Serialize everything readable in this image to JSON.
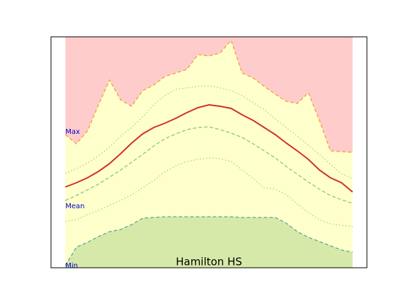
{
  "chart_data": {
    "type": "band-line",
    "title": "Hamilton HS",
    "x": [
      0,
      1,
      2,
      3,
      4,
      5,
      6,
      7,
      8,
      9,
      10,
      11,
      12,
      13,
      14,
      15,
      16,
      17,
      18,
      19,
      20,
      21,
      22,
      23,
      24,
      25,
      26
    ],
    "xlim": [
      -1.3,
      27.3
    ],
    "ylim": [
      0,
      326
    ],
    "band_labels": [
      "Max",
      "Mean",
      "Min"
    ],
    "fills": {
      "above": "#ffcccc",
      "between": "#ffffcc",
      "below": "#d6e9a8"
    },
    "series": [
      {
        "color": "#f0a040",
        "style": "dashed",
        "values": [
          188,
          175,
          193,
          230,
          265,
          237,
          228,
          250,
          258,
          270,
          275,
          280,
          301,
          299,
          303,
          321,
          275,
          268,
          256,
          245,
          235,
          232,
          247,
          208,
          165,
          164,
          163
        ]
      },
      {
        "color": "#a8d088",
        "style": "dotted",
        "values": [
          133,
          140,
          148,
          158,
          170,
          186,
          198,
          213,
          230,
          243,
          252,
          254,
          256,
          257,
          254,
          250,
          243,
          233,
          223,
          210,
          198,
          186,
          173,
          160,
          146,
          133,
          126
        ]
      },
      {
        "color": "#d03030",
        "style": "solid",
        "values": [
          114,
          120,
          127,
          136,
          147,
          161,
          176,
          189,
          198,
          204,
          211,
          219,
          226,
          230,
          228,
          225,
          216,
          208,
          198,
          188,
          176,
          165,
          153,
          138,
          127,
          120,
          107
        ]
      },
      {
        "color": "#88c878",
        "style": "dashed",
        "values": [
          95,
          102,
          110,
          118,
          128,
          138,
          149,
          160,
          172,
          182,
          189,
          195,
          198,
          199,
          195,
          190,
          184,
          175,
          165,
          155,
          143,
          132,
          121,
          111,
          102,
          96,
          91
        ]
      },
      {
        "color": "#a8d088",
        "style": "dotted",
        "values": [
          65,
          68,
          75,
          81,
          88,
          95,
          103,
          113,
          123,
          135,
          144,
          150,
          153,
          155,
          154,
          150,
          138,
          126,
          113,
          111,
          103,
          90,
          78,
          68,
          62,
          60,
          58
        ]
      },
      {
        "color": "#60a8a0",
        "style": "dashed",
        "values": [
          3,
          29,
          36,
          44,
          51,
          54,
          61,
          70,
          71,
          72,
          72,
          72,
          72,
          72,
          72,
          72,
          71,
          71,
          71,
          71,
          63,
          51,
          43,
          37,
          31,
          25,
          22
        ]
      }
    ]
  }
}
